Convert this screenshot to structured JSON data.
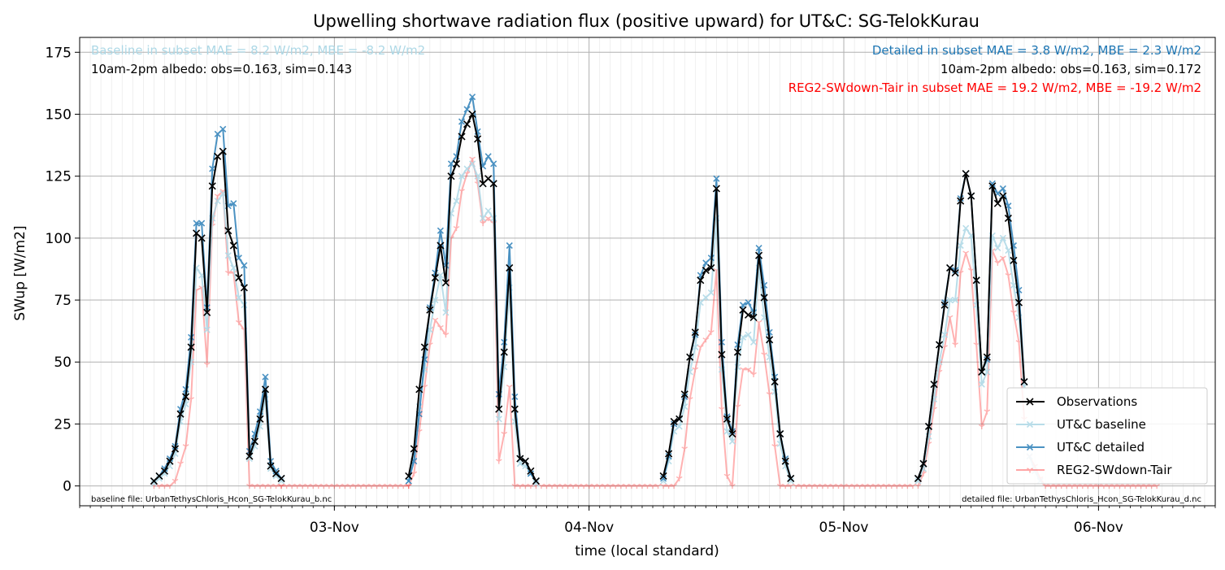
{
  "chart_data": {
    "type": "line",
    "title": "Upwelling shortwave radiation flux (positive upward) for UT&C: SG-TelokKurau",
    "xlabel": "time (local standard)",
    "ylabel": "SWup [W/m2]",
    "xlim": [
      "2020-11-02 00:00",
      "2020-11-06 11:00"
    ],
    "ylim": [
      -8,
      181
    ],
    "grid": true,
    "x_ticks": [
      {
        "label": "03-Nov",
        "x": "2020-11-03 00:00"
      },
      {
        "label": "04-Nov",
        "x": "2020-11-04 00:00"
      },
      {
        "label": "05-Nov",
        "x": "2020-11-05 00:00"
      },
      {
        "label": "06-Nov",
        "x": "2020-11-06 00:00"
      }
    ],
    "y_ticks": [
      0,
      25,
      50,
      75,
      100,
      125,
      150,
      175
    ],
    "annotations": {
      "baseline_stats": "Baseline in subset MAE = 8.2 W/m2, MBE = -8.2 W/m2",
      "baseline_albedo": "10am-2pm albedo: obs=0.163, sim=0.143",
      "detailed_stats": "Detailed in subset MAE = 3.8 W/m2, MBE = 2.3 W/m2",
      "detailed_albedo": "10am-2pm albedo: obs=0.163, sim=0.172",
      "reg2_stats": "REG2-SWdown-Tair in subset MAE = 19.2 W/m2, MBE = -19.2 W/m2",
      "baseline_file": "baseline file: UrbanTethysChloris_Hcon_SG-TelokKurau_b.nc",
      "detailed_file": "detailed file: UrbanTethysChloris_Hcon_SG-TelokKurau_d.nc"
    },
    "legend": {
      "position": "lower right"
    },
    "colors": {
      "observations": "#000000",
      "baseline": "#add8e6",
      "detailed": "#1f77b4",
      "reg2": "#ff0000"
    },
    "series": [
      {
        "name": "Observations",
        "x_start": "2020-11-02 07:00",
        "step_minutes": 30,
        "values": [
          2,
          4,
          6,
          10,
          15,
          29,
          36,
          56,
          102,
          100,
          70,
          121,
          133,
          135,
          103,
          97,
          84,
          80,
          12,
          18,
          27,
          39,
          8,
          5,
          3
        ]
      },
      {
        "name": "UT&C baseline",
        "x_start": "2020-11-02 07:00",
        "step_minutes": 30,
        "values": [
          1,
          3,
          5,
          8,
          13,
          26,
          33,
          50,
          88,
          85,
          63,
          108,
          115,
          118,
          93,
          88,
          76,
          73,
          11,
          16,
          24,
          35,
          7,
          4,
          2
        ]
      },
      {
        "name": "UT&C detailed",
        "x_start": "2020-11-02 07:00",
        "step_minutes": 30,
        "values": [
          2,
          4,
          7,
          11,
          16,
          31,
          39,
          60,
          106,
          106,
          72,
          128,
          142,
          144,
          113,
          114,
          92,
          89,
          14,
          21,
          30,
          44,
          10,
          6,
          3
        ]
      },
      {
        "name": "REG2-SWdown-Tair",
        "x_start": "2020-11-02 07:00",
        "step_minutes": 30,
        "values": [
          0,
          0,
          0,
          0,
          2,
          9,
          16,
          35,
          79,
          80,
          49,
          105,
          117,
          119,
          86,
          86,
          66,
          63,
          0,
          0,
          0,
          0,
          0,
          0,
          0
        ]
      },
      {
        "name": "Observations",
        "x_start": "2020-11-03 07:00",
        "step_minutes": 30,
        "values": [
          4,
          15,
          39,
          56,
          71,
          84,
          97,
          82,
          125,
          130,
          141,
          146,
          150,
          140,
          122,
          124,
          122,
          31,
          54,
          88,
          31,
          11,
          10,
          6,
          2
        ]
      },
      {
        "name": "UT&C baseline",
        "x_start": "2020-11-03 07:00",
        "step_minutes": 30,
        "values": [
          2,
          12,
          32,
          47,
          63,
          75,
          85,
          70,
          110,
          115,
          125,
          128,
          130,
          125,
          108,
          111,
          108,
          27,
          48,
          80,
          26,
          9,
          8,
          5,
          1
        ]
      },
      {
        "name": "UT&C detailed",
        "x_start": "2020-11-03 07:00",
        "step_minutes": 30,
        "values": [
          2,
          10,
          29,
          51,
          72,
          86,
          103,
          89,
          130,
          133,
          147,
          152,
          157,
          143,
          129,
          133,
          130,
          37,
          58,
          97,
          36,
          11,
          10,
          5,
          2
        ]
      },
      {
        "name": "REG2-SWdown-Tair",
        "x_start": "2020-11-03 07:00",
        "step_minutes": 30,
        "values": [
          0,
          5,
          22,
          40,
          57,
          67,
          64,
          61,
          100,
          104,
          119,
          126,
          132,
          122,
          106,
          108,
          106,
          10,
          21,
          40,
          0,
          0,
          0,
          0,
          0
        ]
      },
      {
        "name": "Observations",
        "x_start": "2020-11-04 07:00",
        "step_minutes": 30,
        "values": [
          4,
          13,
          26,
          27,
          37,
          52,
          62,
          83,
          87,
          88,
          120,
          53,
          27,
          21,
          54,
          71,
          69,
          68,
          93,
          76,
          59,
          42,
          21,
          10,
          3
        ]
      },
      {
        "name": "UT&C baseline",
        "x_start": "2020-11-04 07:00",
        "step_minutes": 30,
        "values": [
          2,
          10,
          22,
          24,
          32,
          46,
          56,
          74,
          76,
          78,
          108,
          47,
          22,
          18,
          48,
          60,
          61,
          58,
          88,
          68,
          52,
          38,
          17,
          8,
          2
        ]
      },
      {
        "name": "UT&C detailed",
        "x_start": "2020-11-04 07:00",
        "step_minutes": 30,
        "values": [
          3,
          12,
          25,
          27,
          36,
          52,
          61,
          85,
          90,
          92,
          124,
          58,
          28,
          22,
          57,
          73,
          74,
          70,
          96,
          81,
          62,
          44,
          21,
          11,
          3
        ]
      },
      {
        "name": "REG2-SWdown-Tair",
        "x_start": "2020-11-04 07:00",
        "step_minutes": 30,
        "values": [
          0,
          0,
          0,
          3,
          15,
          35,
          47,
          56,
          59,
          62,
          87,
          31,
          4,
          0,
          32,
          47,
          47,
          45,
          66,
          53,
          37,
          16,
          0,
          0,
          0
        ]
      },
      {
        "name": "Observations",
        "x_start": "2020-11-05 07:00",
        "step_minutes": 30,
        "values": [
          3,
          9,
          24,
          41,
          57,
          73,
          88,
          86,
          115,
          126,
          117,
          83,
          46,
          52,
          121,
          114,
          117,
          108,
          91,
          74,
          42
        ]
      },
      {
        "name": "UT&C baseline",
        "x_start": "2020-11-05 07:00",
        "step_minutes": 30,
        "values": [
          2,
          7,
          20,
          35,
          50,
          61,
          75,
          75,
          97,
          104,
          101,
          73,
          41,
          46,
          101,
          96,
          100,
          95,
          81,
          68,
          40
        ]
      },
      {
        "name": "UT&C detailed",
        "x_start": "2020-11-05 07:00",
        "step_minutes": 30,
        "values": [
          3,
          9,
          24,
          41,
          57,
          74,
          88,
          87,
          116,
          126,
          117,
          83,
          46,
          51,
          122,
          118,
          120,
          113,
          97,
          79,
          42
        ]
      },
      {
        "name": "REG2-SWdown-Tair",
        "x_start": "2020-11-05 07:00",
        "step_minutes": 30,
        "values": [
          0,
          5,
          17,
          31,
          46,
          56,
          68,
          57,
          86,
          94,
          87,
          57,
          24,
          30,
          95,
          90,
          92,
          85,
          70,
          58,
          27
        ]
      },
      {
        "name": "UT&C baseline",
        "x_start": "2020-11-05 17:30",
        "step_minutes": 30,
        "values": [
          12,
          6,
          2
        ]
      },
      {
        "name": "REG2-SWdown-Tair",
        "x_start": "2020-11-05 17:30",
        "step_minutes": 30,
        "values": [
          12,
          8,
          3,
          0,
          0,
          0,
          0,
          0,
          0,
          0,
          0,
          0,
          0,
          0,
          0,
          0,
          0,
          0,
          0,
          0,
          0,
          0,
          0,
          0,
          0
        ]
      },
      {
        "name": "REG2-SWdown-Tair",
        "x_start": "2020-11-02 19:00",
        "step_minutes": 30,
        "values": [
          0,
          0,
          0,
          0,
          0,
          0,
          0,
          0,
          0,
          0,
          0,
          0,
          0,
          0,
          0,
          0,
          0,
          0,
          0,
          0,
          0,
          0,
          0,
          0,
          0
        ]
      },
      {
        "name": "REG2-SWdown-Tair",
        "x_start": "2020-11-03 19:30",
        "step_minutes": 30,
        "values": [
          0,
          0,
          0,
          0,
          0,
          0,
          0,
          0,
          0,
          0,
          0,
          0,
          0,
          0,
          0,
          0,
          0,
          0,
          0,
          0,
          0,
          0,
          0
        ]
      },
      {
        "name": "REG2-SWdown-Tair",
        "x_start": "2020-11-04 19:30",
        "step_minutes": 30,
        "values": [
          0,
          0,
          0,
          0,
          0,
          0,
          0,
          0,
          0,
          0,
          0,
          0,
          0,
          0,
          0,
          0,
          0,
          0,
          0,
          0,
          0,
          0,
          0
        ]
      }
    ]
  }
}
